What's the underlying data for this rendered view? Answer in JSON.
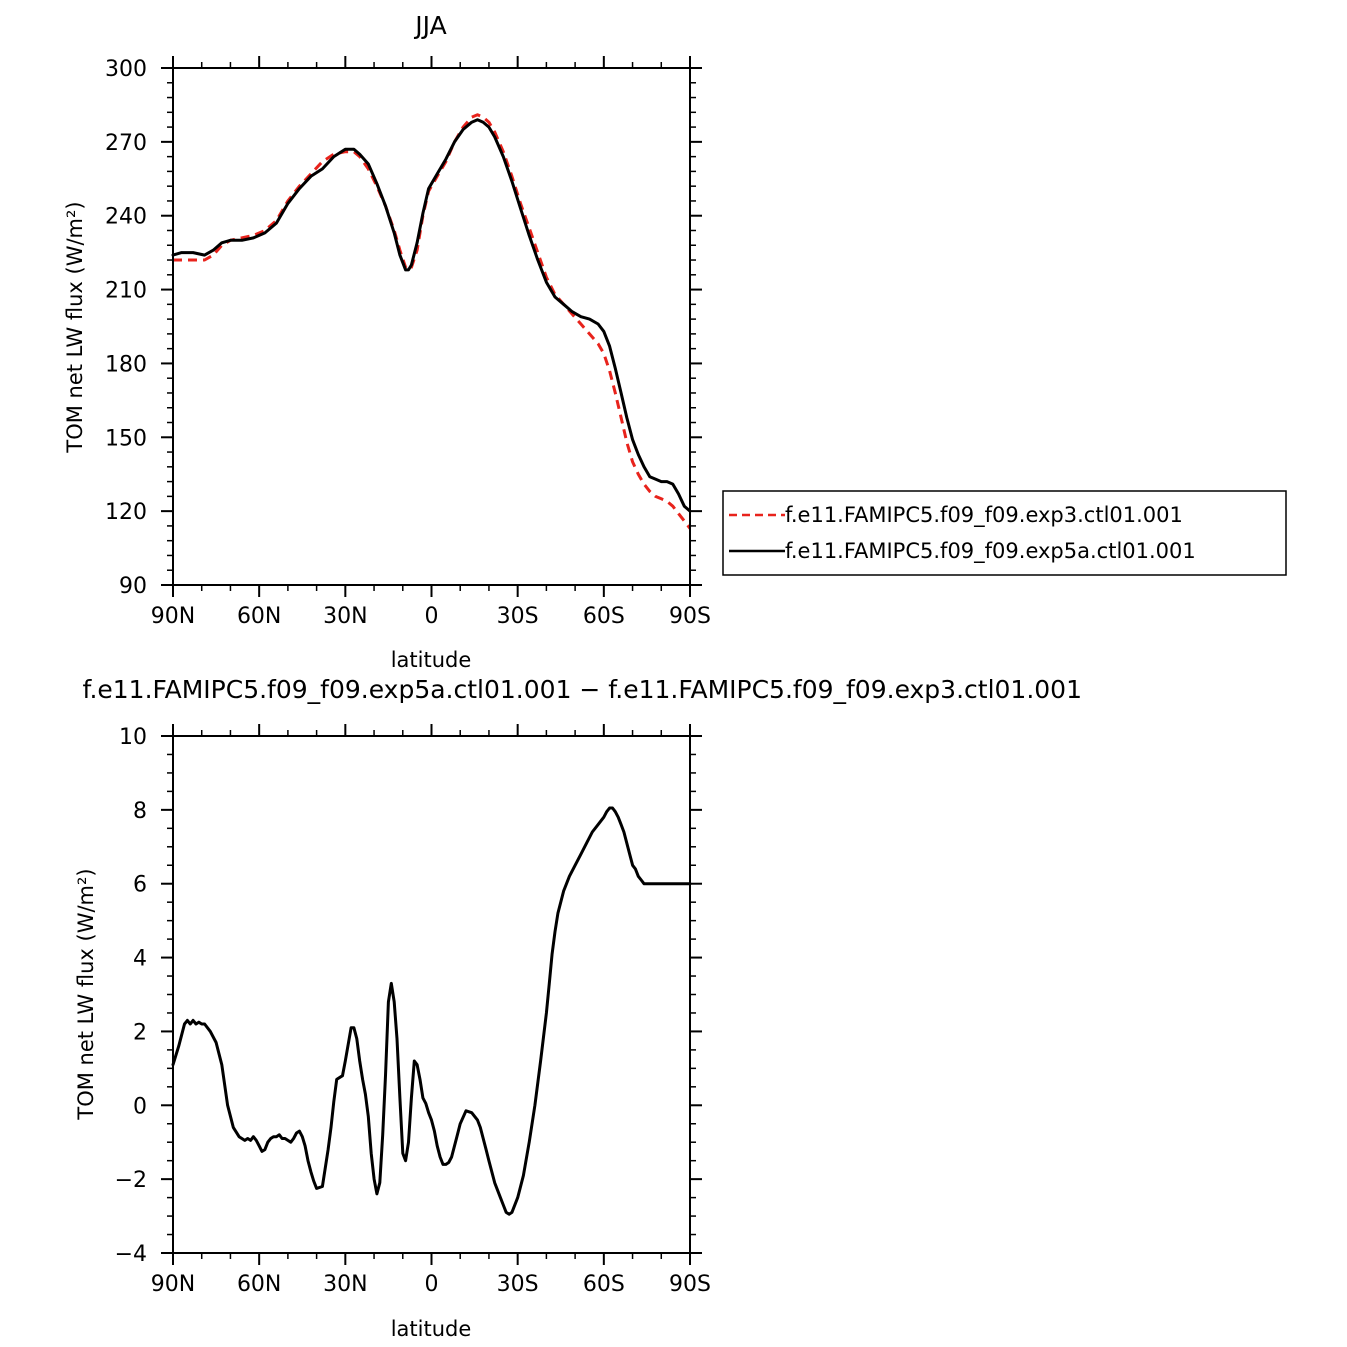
{
  "chart_data": [
    {
      "type": "line",
      "title": "JJA",
      "xlabel": "latitude",
      "ylabel": "TOM net LW flux (W/m²)",
      "xlim": [
        90,
        -90
      ],
      "ylim": [
        90,
        300
      ],
      "x_ticks": [
        {
          "value": 90,
          "label": "90N"
        },
        {
          "value": 60,
          "label": "60N"
        },
        {
          "value": 30,
          "label": "30N"
        },
        {
          "value": 0,
          "label": "0"
        },
        {
          "value": -30,
          "label": "30S"
        },
        {
          "value": -60,
          "label": "60S"
        },
        {
          "value": -90,
          "label": "90S"
        }
      ],
      "y_ticks": [
        {
          "value": 90,
          "label": "90"
        },
        {
          "value": 120,
          "label": "120"
        },
        {
          "value": 150,
          "label": "150"
        },
        {
          "value": 180,
          "label": "180"
        },
        {
          "value": 210,
          "label": "210"
        },
        {
          "value": 240,
          "label": "240"
        },
        {
          "value": 270,
          "label": "270"
        },
        {
          "value": 300,
          "label": "300"
        }
      ],
      "grid": false,
      "legend_position": "right",
      "series": [
        {
          "name": "f.e11.FAMIPC5.f09_f09.exp3.ctl01.001",
          "color": "#e8231c",
          "dash": "dashed",
          "x": [
            90,
            87,
            83,
            79,
            76,
            73,
            70,
            66,
            62,
            58,
            54,
            50,
            46,
            42,
            38,
            34,
            30,
            27,
            25,
            22,
            19,
            16,
            13,
            11,
            9,
            8,
            7,
            5,
            3,
            1,
            -2,
            -5,
            -8,
            -11,
            -14,
            -16,
            -18,
            -20,
            -22,
            -25,
            -28,
            -31,
            -34,
            -37,
            -40,
            -43,
            -46,
            -49,
            -52,
            -55,
            -58,
            -60,
            -62,
            -64,
            -66,
            -68,
            -70,
            -72,
            -74,
            -76,
            -78,
            -80,
            -82,
            -84,
            -86,
            -88,
            -90
          ],
          "y": [
            222,
            222,
            222,
            222,
            224,
            228,
            230,
            231,
            232,
            234,
            238,
            246,
            252,
            257,
            262,
            265,
            266,
            266,
            264,
            259,
            252,
            244,
            234,
            226,
            219,
            218,
            219,
            226,
            240,
            250,
            256,
            262,
            270,
            276,
            280,
            281,
            280,
            278,
            274,
            266,
            256,
            245,
            235,
            225,
            215,
            208,
            204,
            200,
            196,
            192,
            188,
            184,
            177,
            168,
            158,
            148,
            140,
            135,
            131,
            128,
            126,
            125,
            124,
            122,
            119,
            116,
            113
          ]
        },
        {
          "name": "f.e11.FAMIPC5.f09_f09.exp5a.ctl01.001",
          "color": "#000000",
          "dash": "solid",
          "x": [
            90,
            87,
            83,
            79,
            76,
            73,
            70,
            66,
            62,
            58,
            54,
            50,
            46,
            42,
            38,
            34,
            30,
            27,
            25,
            22,
            19,
            16,
            13,
            11,
            9,
            8,
            7,
            5,
            3,
            1,
            -2,
            -5,
            -8,
            -11,
            -14,
            -16,
            -18,
            -20,
            -22,
            -25,
            -28,
            -31,
            -34,
            -37,
            -40,
            -43,
            -46,
            -49,
            -52,
            -55,
            -58,
            -60,
            -62,
            -64,
            -66,
            -68,
            -70,
            -72,
            -74,
            -76,
            -78,
            -80,
            -82,
            -84,
            -86,
            -88,
            -90
          ],
          "y": [
            224,
            225,
            225,
            224,
            226,
            229,
            230,
            230,
            231,
            233,
            237,
            245,
            251,
            256,
            259,
            264,
            267,
            267,
            265,
            261,
            253,
            244,
            233,
            224,
            218,
            218,
            220,
            229,
            241,
            251,
            257,
            263,
            270,
            275,
            278,
            279,
            278,
            276,
            272,
            264,
            254,
            243,
            232,
            222,
            213,
            207,
            204,
            201,
            199,
            198,
            196,
            193,
            187,
            178,
            168,
            158,
            149,
            143,
            138,
            134,
            133,
            132,
            132,
            131,
            127,
            122,
            120
          ]
        }
      ]
    },
    {
      "type": "line",
      "title": "f.e11.FAMIPC5.f09_f09.exp5a.ctl01.001 − f.e11.FAMIPC5.f09_f09.exp3.ctl01.001",
      "xlabel": "latitude",
      "ylabel": "TOM net LW flux (W/m²)",
      "xlim": [
        90,
        -90
      ],
      "ylim": [
        -4,
        10
      ],
      "x_ticks": [
        {
          "value": 90,
          "label": "90N"
        },
        {
          "value": 60,
          "label": "60N"
        },
        {
          "value": 30,
          "label": "30N"
        },
        {
          "value": 0,
          "label": "0"
        },
        {
          "value": -30,
          "label": "30S"
        },
        {
          "value": -60,
          "label": "60S"
        },
        {
          "value": -90,
          "label": "90S"
        }
      ],
      "y_ticks": [
        {
          "value": -4,
          "label": "−4"
        },
        {
          "value": -2,
          "label": "−2"
        },
        {
          "value": 0,
          "label": "0"
        },
        {
          "value": 2,
          "label": "2"
        },
        {
          "value": 4,
          "label": "4"
        },
        {
          "value": 6,
          "label": "6"
        },
        {
          "value": 8,
          "label": "8"
        },
        {
          "value": 10,
          "label": "10"
        }
      ],
      "grid": false,
      "series": [
        {
          "color": "#000000",
          "dash": "solid",
          "x": [
            90,
            88,
            86,
            85,
            84,
            83,
            82,
            81,
            80,
            79,
            77,
            75,
            73,
            71,
            69,
            67,
            65,
            64,
            63,
            62,
            61,
            60,
            59,
            58,
            57,
            56,
            55,
            54,
            53,
            52,
            51,
            50,
            49,
            48,
            47,
            46,
            45,
            44,
            43,
            42,
            41,
            40,
            38,
            36,
            35,
            34,
            33,
            31,
            30,
            28,
            27,
            26,
            25,
            24,
            23,
            22,
            21,
            20,
            19,
            18,
            17,
            16,
            15,
            14,
            13,
            12,
            11,
            10,
            9,
            8,
            7,
            6,
            5,
            4,
            3,
            2,
            1,
            0,
            -1,
            -2,
            -3,
            -4,
            -5,
            -6,
            -7,
            -8,
            -9,
            -10,
            -12,
            -14,
            -16,
            -17,
            -18,
            -19,
            -20,
            -22,
            -24,
            -25,
            -26,
            -27,
            -28,
            -30,
            -32,
            -34,
            -36,
            -38,
            -40,
            -41,
            -42,
            -43,
            -44,
            -46,
            -48,
            -50,
            -52,
            -54,
            -56,
            -58,
            -60,
            -61,
            -62,
            -63,
            -64,
            -65,
            -66,
            -67,
            -68,
            -69,
            -70,
            -71,
            -72,
            -73,
            -74,
            -75,
            -76,
            -77,
            -78,
            -79,
            -80,
            -81,
            -82,
            -83,
            -84,
            -85,
            -86,
            -87,
            -88,
            -89,
            -90
          ],
          "y": [
            1.1,
            1.6,
            2.2,
            2.3,
            2.2,
            2.3,
            2.2,
            2.25,
            2.2,
            2.2,
            2.0,
            1.7,
            1.1,
            0.0,
            -0.6,
            -0.85,
            -0.95,
            -0.9,
            -0.95,
            -0.85,
            -0.95,
            -1.1,
            -1.25,
            -1.2,
            -1.0,
            -0.9,
            -0.85,
            -0.85,
            -0.8,
            -0.9,
            -0.9,
            -0.95,
            -1.0,
            -0.9,
            -0.75,
            -0.7,
            -0.85,
            -1.1,
            -1.5,
            -1.8,
            -2.05,
            -2.25,
            -2.2,
            -1.2,
            -0.6,
            0.1,
            0.7,
            0.8,
            1.2,
            2.1,
            2.1,
            1.8,
            1.2,
            0.7,
            0.3,
            -0.3,
            -1.3,
            -2.0,
            -2.4,
            -2.1,
            -0.8,
            0.8,
            2.8,
            3.3,
            2.8,
            1.8,
            0.2,
            -1.3,
            -1.5,
            -1.0,
            0.2,
            1.2,
            1.1,
            0.7,
            0.2,
            0.05,
            -0.2,
            -0.4,
            -0.7,
            -1.1,
            -1.4,
            -1.6,
            -1.6,
            -1.55,
            -1.4,
            -1.1,
            -0.8,
            -0.5,
            -0.15,
            -0.2,
            -0.4,
            -0.6,
            -0.9,
            -1.2,
            -1.5,
            -2.1,
            -2.5,
            -2.7,
            -2.9,
            -2.95,
            -2.9,
            -2.5,
            -1.9,
            -1.0,
            0.0,
            1.2,
            2.5,
            3.3,
            4.1,
            4.7,
            5.2,
            5.8,
            6.2,
            6.5,
            6.8,
            7.1,
            7.4,
            7.6,
            7.8,
            7.95,
            8.05,
            8.05,
            7.95,
            7.8,
            7.6,
            7.4,
            7.1,
            6.8,
            6.5,
            6.4,
            6.2,
            6.1,
            6.0,
            6.0,
            6.0,
            6.0,
            6.0,
            6.0,
            6.0,
            6.0,
            6.0,
            6.0,
            6.0,
            6.0,
            6.0,
            6.0,
            6.0,
            6.0,
            6.0
          ]
        }
      ]
    }
  ]
}
